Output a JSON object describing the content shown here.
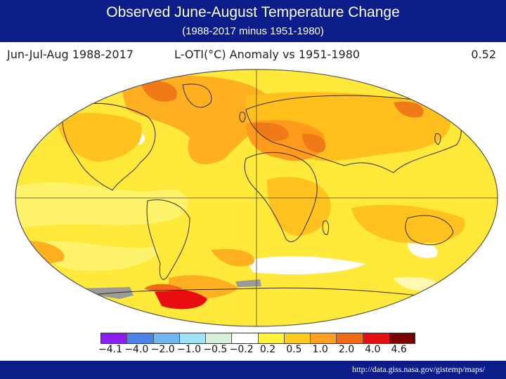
{
  "header": {
    "title": "Observed June-August Temperature Change",
    "subtitle": "(1988-2017 minus 1951-1980)"
  },
  "map_header": {
    "period": "Jun-Jul-Aug 1988-2017",
    "metric": "L-OTI(°C) Anomaly vs 1951-1980",
    "global_mean": "0.52"
  },
  "legend": {
    "colors": [
      "#8b1ef0",
      "#4a82e8",
      "#73b5f0",
      "#9fe3f4",
      "#d8f0d8",
      "#ffffff",
      "#fff23a",
      "#ffcc1e",
      "#ffa020",
      "#f06a18",
      "#e80d10",
      "#7a0000"
    ],
    "ticks": [
      "−4.1",
      "−4.0",
      "−2.0",
      "−1.0",
      "−0.5",
      "−0.2",
      "0.2",
      "0.5",
      "1.0",
      "2.0",
      "4.0",
      "4.6"
    ]
  },
  "footer": {
    "source": "http://data.giss.nasa.gov/gistemp/maps/"
  }
}
